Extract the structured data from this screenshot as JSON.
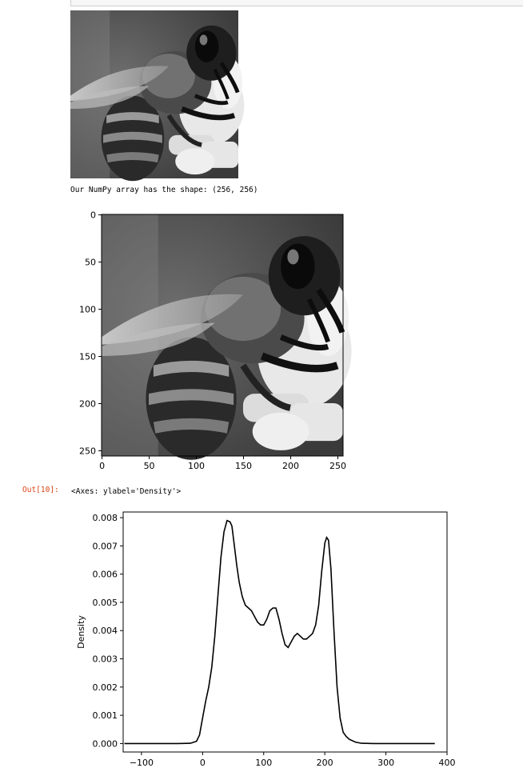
{
  "notebook": {
    "stdout_text": "Our NumPy array has the shape: (256, 256)",
    "out_prompt": "Out[10]:",
    "out_text": "<Axes: ylabel='Density'>"
  },
  "image_plot": {
    "xticks": [
      "0",
      "50",
      "100",
      "150",
      "200",
      "250"
    ],
    "yticks": [
      "0",
      "50",
      "100",
      "150",
      "200",
      "250"
    ]
  },
  "chart_data": {
    "type": "line",
    "title": "",
    "xlabel": "",
    "ylabel": "Density",
    "xlim": [
      -130,
      400
    ],
    "ylim": [
      -0.0003,
      0.0082
    ],
    "xticks": [
      "−100",
      "0",
      "100",
      "200",
      "300",
      "400"
    ],
    "yticks": [
      "0.000",
      "0.001",
      "0.002",
      "0.003",
      "0.004",
      "0.005",
      "0.006",
      "0.007",
      "0.008"
    ],
    "series": [
      {
        "x": [
          -128,
          -40,
          -20,
          -10,
          -5,
          0,
          5,
          10,
          15,
          20,
          25,
          30,
          35,
          40,
          45,
          48,
          52,
          56,
          60,
          65,
          70,
          75,
          80,
          85,
          90,
          95,
          100,
          105,
          110,
          115,
          120,
          125,
          130,
          135,
          140,
          145,
          150,
          155,
          160,
          165,
          170,
          175,
          180,
          185,
          190,
          195,
          200,
          203,
          206,
          210,
          215,
          220,
          225,
          230,
          235,
          240,
          250,
          260,
          280,
          300,
          340,
          380
        ],
        "y": [
          0,
          0,
          1e-05,
          8e-05,
          0.0003,
          0.0009,
          0.0015,
          0.002,
          0.0027,
          0.0038,
          0.0052,
          0.0066,
          0.0075,
          0.0079,
          0.00785,
          0.0077,
          0.007,
          0.0063,
          0.0057,
          0.0052,
          0.0049,
          0.0048,
          0.0047,
          0.0045,
          0.0043,
          0.0042,
          0.0042,
          0.0044,
          0.0047,
          0.0048,
          0.0048,
          0.0044,
          0.0039,
          0.0035,
          0.0034,
          0.0036,
          0.0038,
          0.0039,
          0.0038,
          0.0037,
          0.0037,
          0.0038,
          0.0039,
          0.0042,
          0.0049,
          0.0061,
          0.0071,
          0.0073,
          0.0072,
          0.0062,
          0.004,
          0.002,
          0.0009,
          0.0004,
          0.00025,
          0.00015,
          5e-05,
          1e-05,
          0,
          0,
          0,
          0
        ]
      }
    ]
  }
}
